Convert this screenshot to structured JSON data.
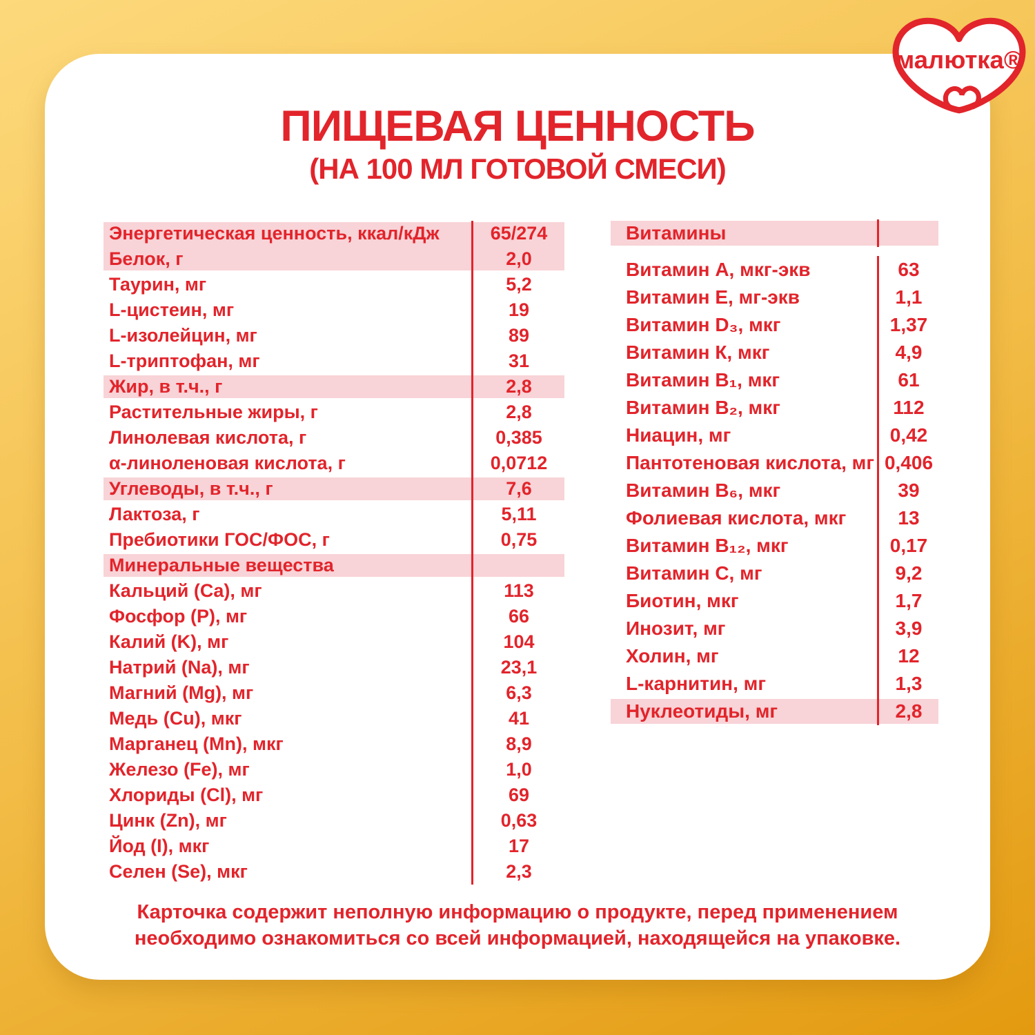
{
  "colors": {
    "red": "#E2242B",
    "pink": "#F8D3D7",
    "bg_top": "#FDD97C",
    "bg_bottom": "#E39A10",
    "card": "#FFFFFF"
  },
  "logo": {
    "brand": "малютка®"
  },
  "title": {
    "line1": "ПИЩЕВАЯ ЦЕННОСТЬ",
    "line2": "(НА 100 МЛ ГОТОВОЙ СМЕСИ)"
  },
  "left_table": {
    "rows": [
      {
        "label": "Энергетическая ценность, ккал/кДж",
        "value": "65/274",
        "hl": "start"
      },
      {
        "label": "Белок, г",
        "value": "2,0",
        "hl": "end"
      },
      {
        "label": "Таурин, мг",
        "value": "5,2"
      },
      {
        "label": "L-цистеин, мг",
        "value": "19"
      },
      {
        "label": "L-изолейцин, мг",
        "value": "89"
      },
      {
        "label": "L-триптофан, мг",
        "value": "31"
      },
      {
        "label": "Жир, в т.ч., г",
        "value": "2,8",
        "hl": "solo"
      },
      {
        "label": "Растительные жиры, г",
        "value": "2,8"
      },
      {
        "label": "Линолевая кислота, г",
        "value": "0,385"
      },
      {
        "label": "α-линоленовая кислота, г",
        "value": "0,0712"
      },
      {
        "label": "Углеводы, в т.ч., г",
        "value": "7,6",
        "hl": "solo"
      },
      {
        "label": "Лактоза, г",
        "value": "5,11"
      },
      {
        "label": "Пребиотики ГОС/ФОС, г",
        "value": "0,75"
      },
      {
        "label": "Минеральные вещества",
        "value": "",
        "hl": "solo"
      },
      {
        "label": "Кальций (Ca), мг",
        "value": "113"
      },
      {
        "label": "Фосфор (P), мг",
        "value": "66"
      },
      {
        "label": "Калий (K), мг",
        "value": "104"
      },
      {
        "label": "Натрий (Na), мг",
        "value": "23,1"
      },
      {
        "label": "Магний (Mg), мг",
        "value": "6,3"
      },
      {
        "label": "Медь (Cu), мкг",
        "value": "41"
      },
      {
        "label": "Марганец (Mn), мкг",
        "value": "8,9"
      },
      {
        "label": "Железо (Fe), мг",
        "value": "1,0"
      },
      {
        "label": "Хлориды (Cl), мг",
        "value": "69"
      },
      {
        "label": "Цинк (Zn), мг",
        "value": "0,63"
      },
      {
        "label": "Йод (I), мкг",
        "value": "17"
      },
      {
        "label": "Селен (Se), мкг",
        "value": "2,3"
      }
    ]
  },
  "right_table": {
    "rows": [
      {
        "label": "Витамины",
        "value": "",
        "hl": "solo",
        "gap_after": true
      },
      {
        "label": "Витамин А, мкг-экв",
        "value": "63"
      },
      {
        "label": "Витамин Е, мг-экв",
        "value": "1,1"
      },
      {
        "label": "Витамин D₃, мкг",
        "value": "1,37"
      },
      {
        "label": "Витамин К, мкг",
        "value": "4,9"
      },
      {
        "label": "Витамин В₁, мкг",
        "value": "61"
      },
      {
        "label": "Витамин В₂, мкг",
        "value": "112"
      },
      {
        "label": "Ниацин, мг",
        "value": "0,42"
      },
      {
        "label": "Пантотеновая кислота, мг",
        "value": "0,406"
      },
      {
        "label": "Витамин В₆, мкг",
        "value": "39"
      },
      {
        "label": "Фолиевая кислота, мкг",
        "value": "13"
      },
      {
        "label": "Витамин В₁₂, мкг",
        "value": "0,17"
      },
      {
        "label": "Витамин С, мг",
        "value": "9,2"
      },
      {
        "label": "Биотин, мкг",
        "value": "1,7"
      },
      {
        "label": "Инозит, мг",
        "value": "3,9"
      },
      {
        "label": "Холин, мг",
        "value": "12"
      },
      {
        "label": "L-карнитин, мг",
        "value": "1,3"
      },
      {
        "label": "Нуклеотиды, мг",
        "value": "2,8",
        "hl": "solo"
      }
    ]
  },
  "footer": {
    "line1": "Карточка содержит неполную информацию о продукте, перед применением",
    "line2": "необходимо ознакомиться со всей информацией, находящейся на упаковке."
  }
}
